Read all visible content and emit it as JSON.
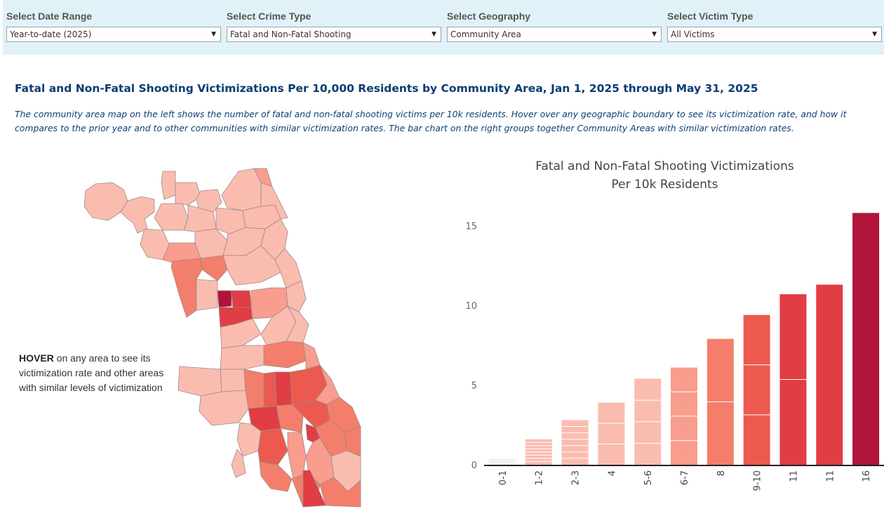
{
  "filters": [
    {
      "label": "Select Date Range",
      "value": "Year-to-date (2025)"
    },
    {
      "label": "Select Crime Type",
      "value": "Fatal and Non-Fatal Shooting"
    },
    {
      "label": "Select Geography",
      "value": "Community Area"
    },
    {
      "label": "Select Victim Type",
      "value": "All Victims"
    }
  ],
  "page": {
    "title": "Fatal and Non-Fatal Shooting Victimizations Per 10,000 Residents by Community Area, Jan 1, 2025 through May 31, 2025",
    "description": "The community area map on the left shows the number of fatal and non-fatal shooting victims per 10k residents. Hover over any geographic boundary to see its victimization rate, and how it compares to the prior year and to other communities with similar victimization rates. The bar chart on the right groups together Community Areas with similar victimization rates.",
    "hover_note_bold": "HOVER",
    "hover_note_rest": " on any area to see its victimization rate and other areas with similar levels of victimization"
  },
  "colors": {
    "bin_0": "#f2f2f2",
    "bin_1": "#fbbcb0",
    "bin_2": "#f99d8e",
    "bin_3": "#f47e6c",
    "bin_4": "#ec5a4f",
    "bin_5": "#e03d45",
    "bin_6": "#b1133a",
    "axis": "#222222"
  },
  "chart_data": {
    "type": "bar",
    "title_line1": "Fatal and Non-Fatal Shooting Victimizations",
    "title_line2": "Per 10k Residents",
    "categories": [
      "0-1",
      "1-2",
      "2-3",
      "4",
      "5-6",
      "6-7",
      "8",
      "9-10",
      "11",
      "11",
      "16"
    ],
    "values": [
      0.4,
      1.6,
      2.8,
      3.9,
      5.4,
      6.1,
      7.9,
      9.4,
      10.7,
      11.3,
      15.8
    ],
    "segments": [
      1,
      8,
      7,
      3,
      4,
      4,
      2,
      3,
      2,
      1,
      1
    ],
    "color_bins": [
      "bin_0",
      "bin_1",
      "bin_1",
      "bin_1",
      "bin_1",
      "bin_2",
      "bin_3",
      "bin_4",
      "bin_5",
      "bin_5",
      "bin_6"
    ],
    "yticks": [
      0,
      5,
      10,
      15
    ],
    "ylim": [
      0,
      16.3
    ],
    "xlabel": "",
    "ylabel": ""
  }
}
